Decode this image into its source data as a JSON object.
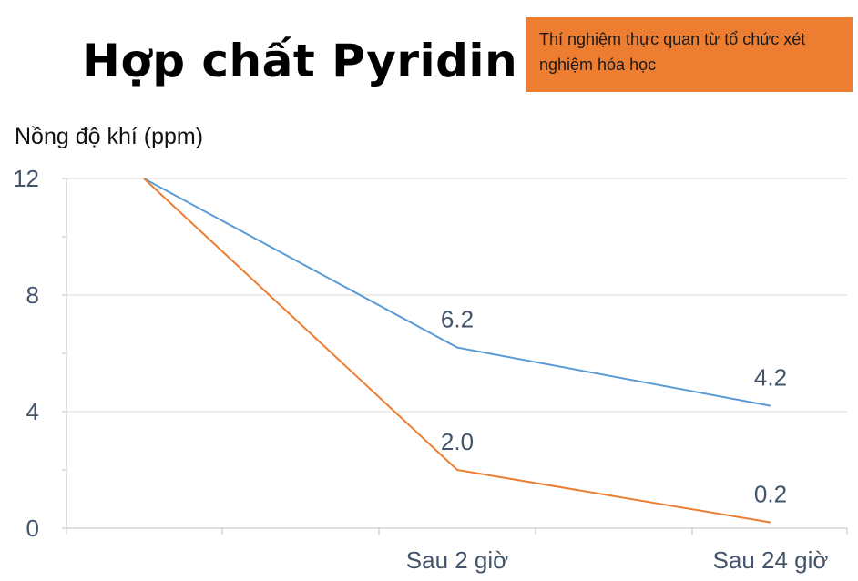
{
  "title": "Hợp chất Pyridin",
  "note": "Thí nghiệm thực quan từ tổ chức xét nghiệm hóa học",
  "chart_data": {
    "type": "line",
    "ylabel": "Nồng độ khí (ppm)",
    "ylim": [
      0,
      12
    ],
    "yticks": [
      0,
      4,
      8,
      12
    ],
    "categories": [
      "",
      "Sau 2 giờ",
      "Sau 24 giờ"
    ],
    "grid": true,
    "series": [
      {
        "values": [
          12,
          6.2,
          4.2
        ],
        "labels": [
          "",
          "6.2",
          "4.2"
        ],
        "color": "#5B9BD5"
      },
      {
        "values": [
          12,
          2.0,
          0.2
        ],
        "labels": [
          "",
          "2.0",
          "0.2"
        ],
        "color": "#ED7D31"
      }
    ]
  }
}
